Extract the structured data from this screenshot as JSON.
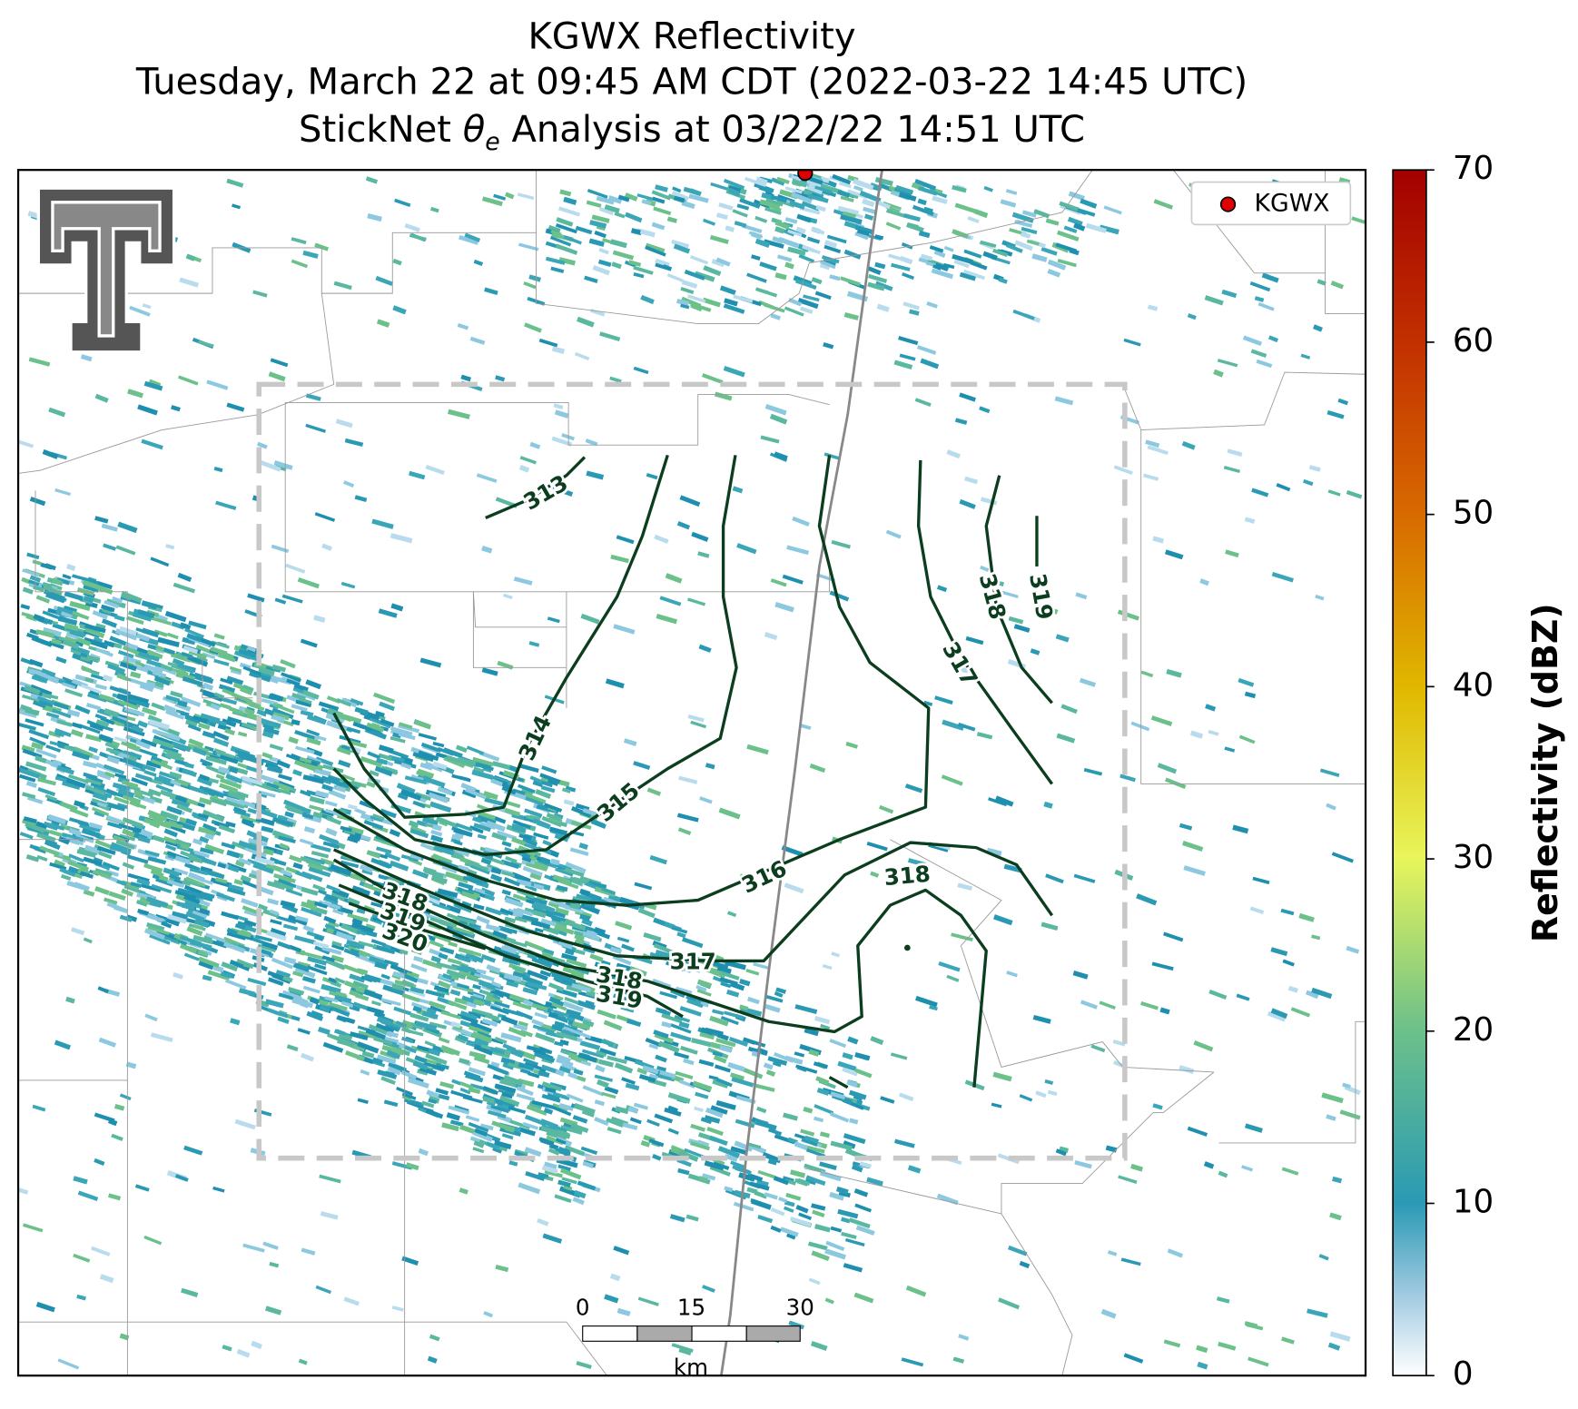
{
  "title": {
    "line1": "KGWX Reflectivity",
    "line2": "Tuesday, March 22 at 09:45 AM CDT (2022-03-22 14:45 UTC)",
    "line3": {
      "before": "StickNet ",
      "symbol": "θ",
      "subscript": "e",
      "after": " Analysis at 03/22/22 14:51 UTC"
    }
  },
  "legend": {
    "label": "KGWX"
  },
  "colorbar": {
    "label": "Reflectivity (dBZ)",
    "lim": [
      0,
      70
    ],
    "ticks": [
      0,
      10,
      20,
      30,
      40,
      50,
      60,
      70
    ]
  },
  "contour_labels": [
    313,
    314,
    315,
    316,
    317,
    318,
    319,
    318,
    317,
    318,
    319,
    318,
    319,
    320
  ],
  "scale_bar": {
    "ticks": [
      0,
      15,
      30
    ],
    "unit": "km"
  }
}
